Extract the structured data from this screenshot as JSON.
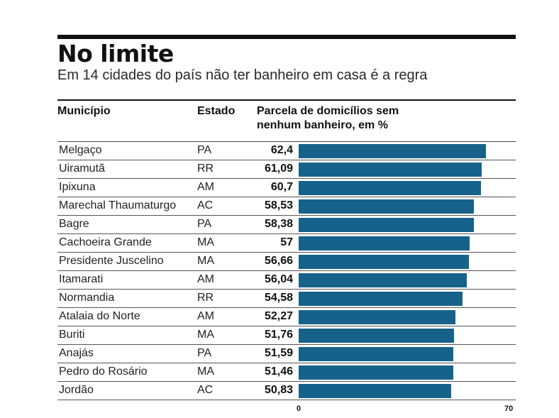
{
  "chart_data": {
    "type": "bar",
    "orientation": "horizontal",
    "title": "No limite",
    "subtitle": "Em 14 cidades do país não ter banheiro em casa é a regra",
    "columns": {
      "municipio": "Município",
      "estado": "Estado",
      "parcela": "Parcela de domicílios sem nenhum banheiro, em %"
    },
    "xlim": [
      0,
      70
    ],
    "axis_ticks": [
      "0",
      "70"
    ],
    "bar_color": "#17628a",
    "rows": [
      {
        "municipio": "Melgaço",
        "estado": "PA",
        "label": "62,4",
        "value": 62.4
      },
      {
        "municipio": "Uiramutã",
        "estado": "RR",
        "label": "61,09",
        "value": 61.09
      },
      {
        "municipio": "Ipixuna",
        "estado": "AM",
        "label": "60,7",
        "value": 60.7
      },
      {
        "municipio": "Marechal Thaumaturgo",
        "estado": "AC",
        "label": "58,53",
        "value": 58.53
      },
      {
        "municipio": "Bagre",
        "estado": "PA",
        "label": "58,38",
        "value": 58.38
      },
      {
        "municipio": "Cachoeira Grande",
        "estado": "MA",
        "label": "57",
        "value": 57
      },
      {
        "municipio": "Presidente Juscelino",
        "estado": "MA",
        "label": "56,66",
        "value": 56.66
      },
      {
        "municipio": "Itamarati",
        "estado": "AM",
        "label": "56,04",
        "value": 56.04
      },
      {
        "municipio": "Normandia",
        "estado": "RR",
        "label": "54,58",
        "value": 54.58
      },
      {
        "municipio": "Atalaia do Norte",
        "estado": "AM",
        "label": "52,27",
        "value": 52.27
      },
      {
        "municipio": "Buriti",
        "estado": "MA",
        "label": "51,76",
        "value": 51.76
      },
      {
        "municipio": "Anajás",
        "estado": "PA",
        "label": "51,59",
        "value": 51.59
      },
      {
        "municipio": "Pedro do Rosário",
        "estado": "MA",
        "label": "51,46",
        "value": 51.46
      },
      {
        "municipio": "Jordão",
        "estado": "AC",
        "label": "50,83",
        "value": 50.83
      }
    ]
  }
}
